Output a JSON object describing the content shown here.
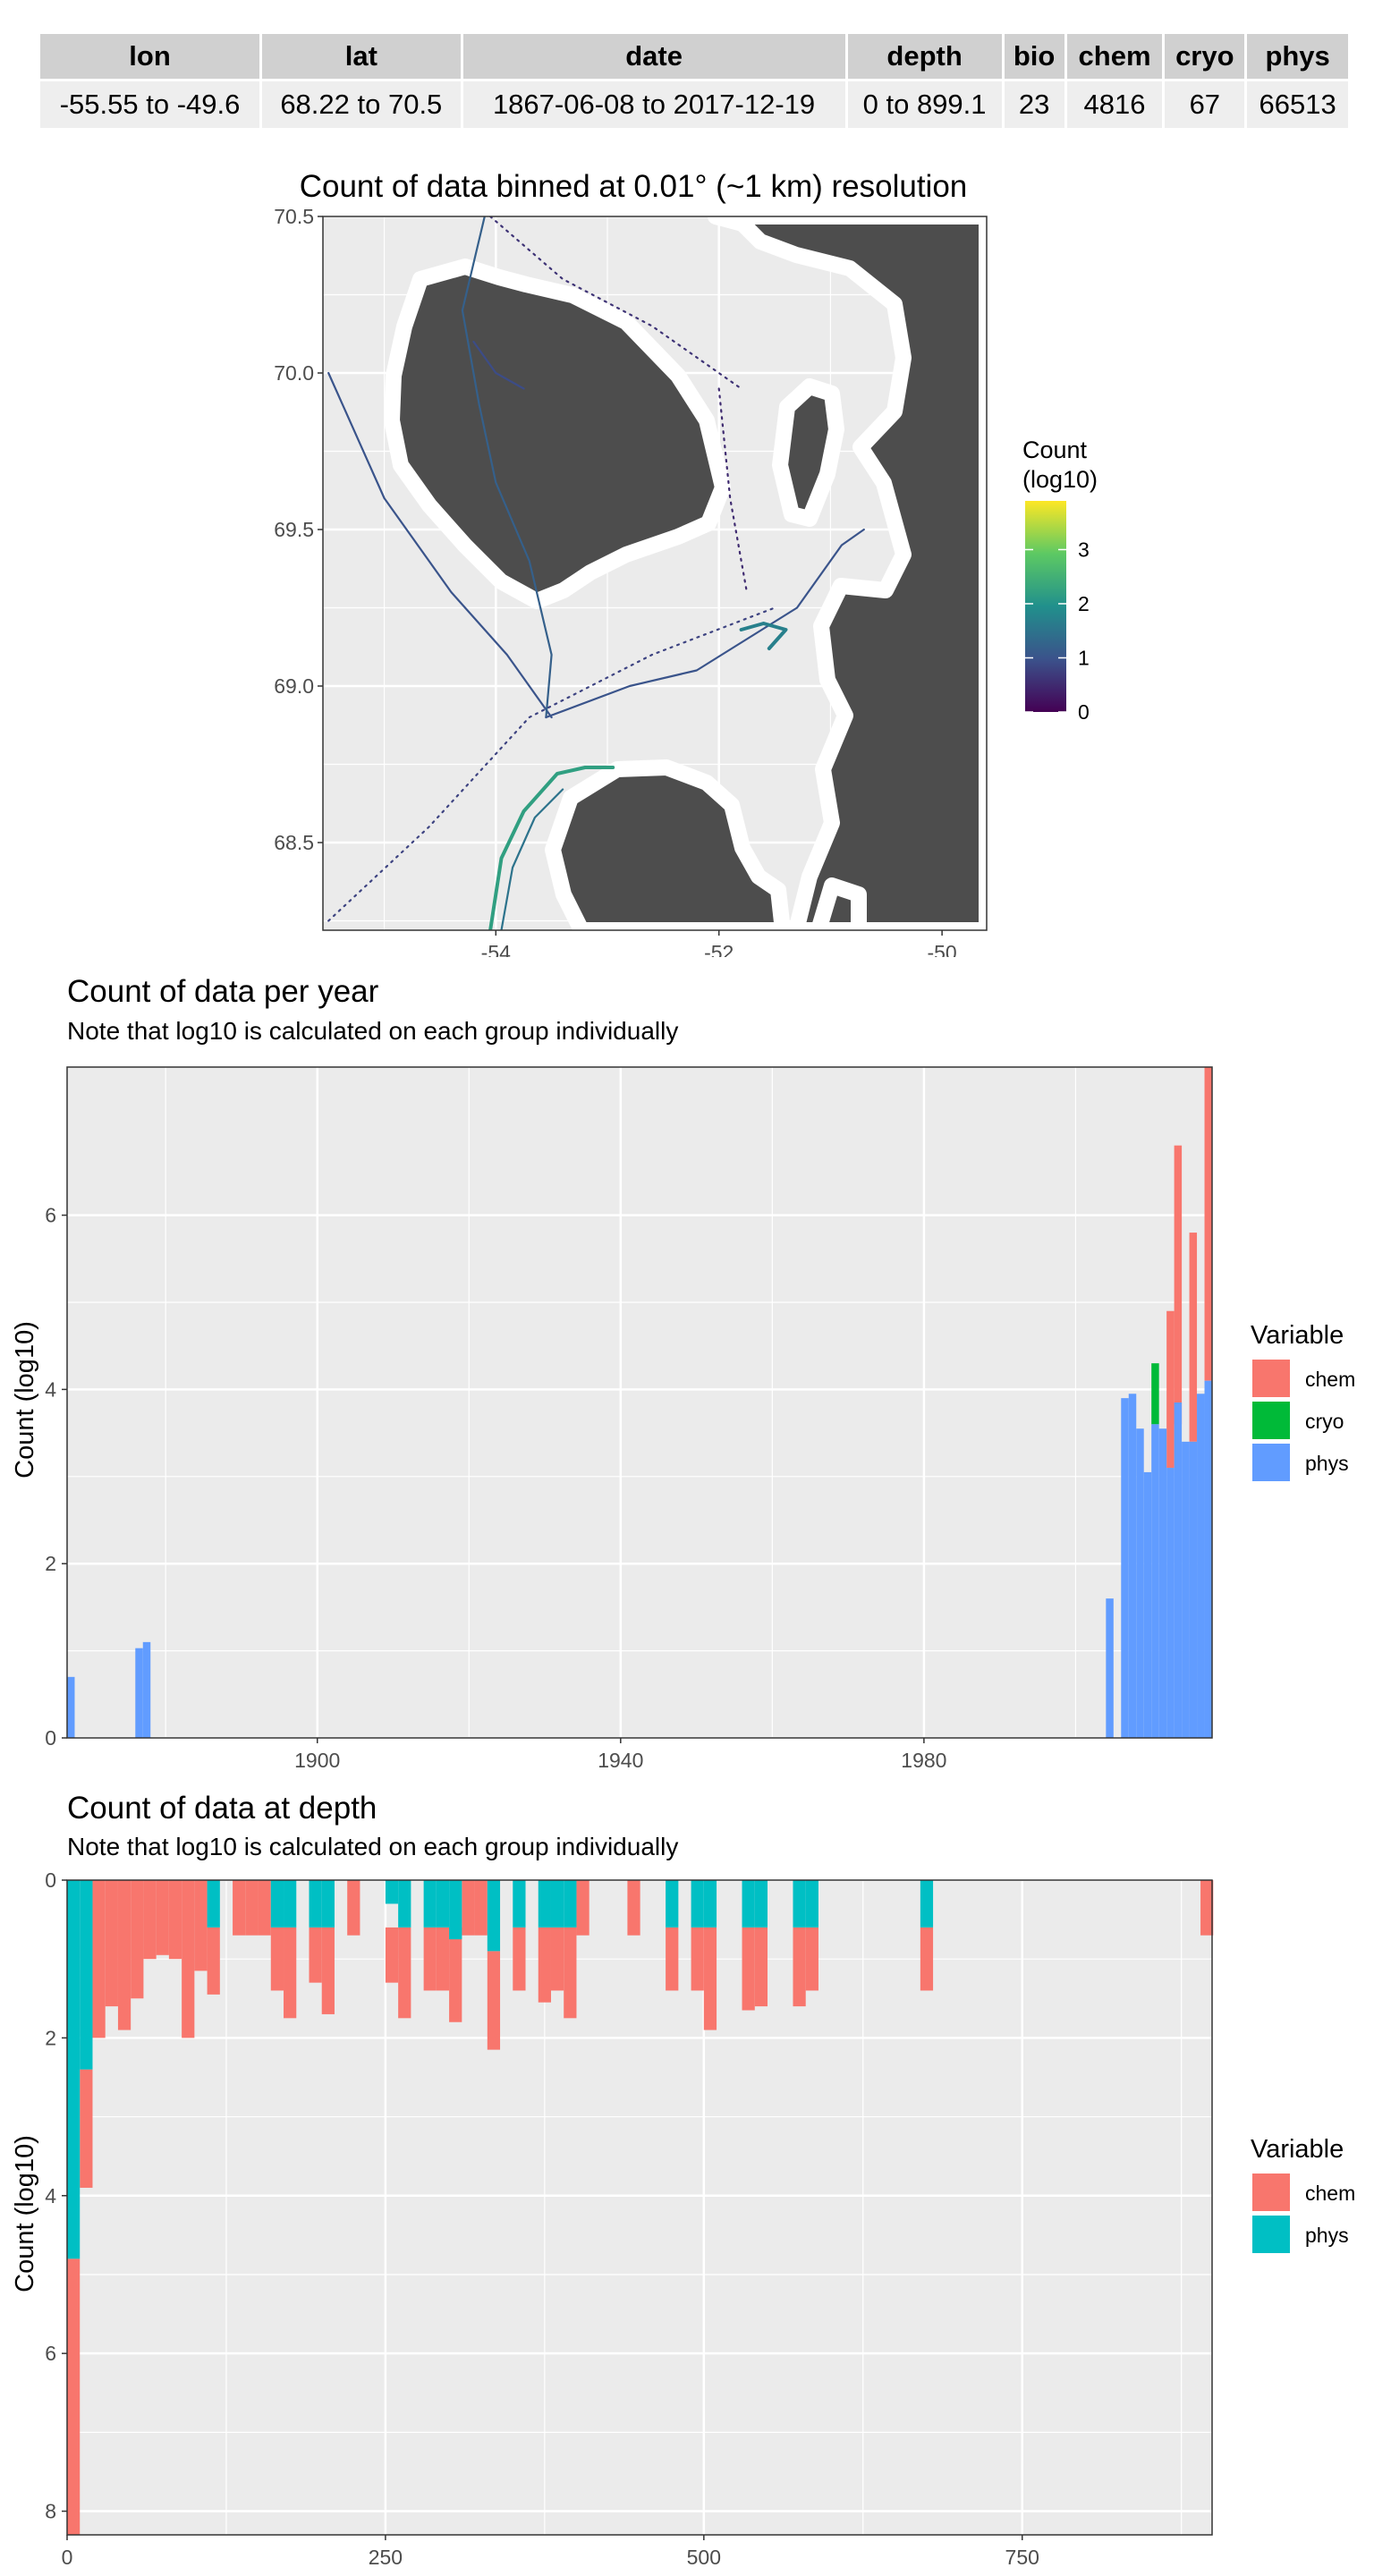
{
  "table": {
    "headers": [
      "lon",
      "lat",
      "date",
      "depth",
      "bio",
      "chem",
      "cryo",
      "phys"
    ],
    "values": [
      "-55.55 to -49.6",
      "68.22 to 70.5",
      "1867-06-08 to 2017-12-19",
      "0 to 899.1",
      "23",
      "4816",
      "67",
      "66513"
    ]
  },
  "chart_data": [
    {
      "type": "heatmap",
      "title": "Count of data binned at 0.01° (~1 km) resolution",
      "xlabel": "",
      "ylabel": "",
      "xlim": [
        -55.55,
        -49.6
      ],
      "ylim": [
        68.22,
        70.5
      ],
      "x_ticks": [
        "-54",
        "-52",
        "-50"
      ],
      "y_ticks": [
        "70.5",
        "70.0",
        "69.5",
        "69.0",
        "68.5"
      ],
      "legend_title": "Count (log10)",
      "legend_ticks": [
        "3",
        "2",
        "1",
        "0"
      ],
      "color_range": [
        0,
        3.9
      ],
      "colors": {
        "land": "#4d4d4d",
        "coast_buffer": "#ebebeb",
        "grid": "#ffffff",
        "low": "#440154",
        "mid": "#21908c",
        "high": "#fde725"
      },
      "tracks": [
        {
          "count": 1.0,
          "points": [
            [
              -55.5,
              70.0
            ],
            [
              -55.0,
              69.6
            ],
            [
              -54.4,
              69.3
            ],
            [
              -53.9,
              69.1
            ],
            [
              -53.5,
              68.9
            ]
          ]
        },
        {
          "count": 1.2,
          "points": [
            [
              -54.1,
              70.5
            ],
            [
              -54.3,
              70.2
            ],
            [
              -54.15,
              69.9
            ],
            [
              -54.0,
              69.65
            ],
            [
              -53.7,
              69.4
            ],
            [
              -53.5,
              69.1
            ],
            [
              -53.55,
              68.9
            ]
          ]
        },
        {
          "count": 1.0,
          "points": [
            [
              -53.55,
              68.9
            ],
            [
              -52.8,
              69.0
            ],
            [
              -52.2,
              69.05
            ],
            [
              -51.3,
              69.25
            ],
            [
              -50.9,
              69.45
            ],
            [
              -50.7,
              69.5
            ]
          ]
        },
        {
          "count": 2.2,
          "points": [
            [
              -54.05,
              68.22
            ],
            [
              -53.95,
              68.45
            ],
            [
              -53.75,
              68.6
            ],
            [
              -53.45,
              68.72
            ],
            [
              -53.2,
              68.74
            ],
            [
              -52.95,
              68.74
            ]
          ]
        },
        {
          "count": 1.5,
          "points": [
            [
              -53.95,
              68.22
            ],
            [
              -53.85,
              68.42
            ],
            [
              -53.65,
              68.58
            ],
            [
              -53.4,
              68.67
            ]
          ]
        },
        {
          "count": 0.8,
          "points": [
            [
              -55.5,
              68.25
            ],
            [
              -54.6,
              68.55
            ],
            [
              -53.7,
              68.9
            ],
            [
              -52.6,
              69.1
            ],
            [
              -51.5,
              69.25
            ]
          ]
        },
        {
          "count": 1.7,
          "points": [
            [
              -51.8,
              69.18
            ],
            [
              -51.6,
              69.2
            ],
            [
              -51.4,
              69.18
            ],
            [
              -51.55,
              69.12
            ]
          ]
        },
        {
          "count": 0.9,
          "points": [
            [
              -54.2,
              70.1
            ],
            [
              -54.0,
              70.0
            ],
            [
              -53.75,
              69.95
            ]
          ]
        },
        {
          "count": 0.6,
          "points": [
            [
              -54.05,
              70.5
            ],
            [
              -53.4,
              70.3
            ],
            [
              -52.6,
              70.15
            ],
            [
              -51.8,
              69.95
            ]
          ]
        },
        {
          "count": 0.5,
          "points": [
            [
              -52.0,
              69.95
            ],
            [
              -51.9,
              69.6
            ],
            [
              -51.75,
              69.3
            ]
          ]
        }
      ]
    },
    {
      "type": "bar",
      "title": "Count of data per year",
      "subtitle": "Note that log10 is calculated on each group individually",
      "xlabel": "",
      "ylabel": "Count (log10)",
      "xlim": [
        1867,
        2018
      ],
      "ylim": [
        0,
        7.7
      ],
      "x_ticks": [
        1900,
        1940,
        1980
      ],
      "y_ticks": [
        0,
        2,
        4,
        6
      ],
      "legend_title": "Variable",
      "bin_width": 1,
      "series": [
        {
          "name": "chem",
          "color": "#f8766d",
          "bars": [
            [
              2012,
              3.1,
              4.9
            ],
            [
              2013,
              3.6,
              6.8
            ],
            [
              2015,
              3.4,
              5.8
            ],
            [
              2017,
              4.1,
              7.7
            ]
          ]
        },
        {
          "name": "cryo",
          "color": "#00ba38",
          "bars": [
            [
              2010,
              3.6,
              4.3
            ]
          ]
        },
        {
          "name": "phys",
          "color": "#619cff",
          "bars": [
            [
              1867,
              0,
              0.7
            ],
            [
              1876,
              0,
              1.03
            ],
            [
              1877,
              0,
              1.1
            ],
            [
              2004,
              0,
              1.6
            ],
            [
              2006,
              0,
              3.9
            ],
            [
              2007,
              0,
              3.95
            ],
            [
              2008,
              0,
              3.55
            ],
            [
              2009,
              0,
              3.05
            ],
            [
              2010,
              0,
              3.6
            ],
            [
              2011,
              0,
              3.55
            ],
            [
              2012,
              0,
              3.1
            ],
            [
              2013,
              0,
              3.85
            ],
            [
              2014,
              0,
              3.4
            ],
            [
              2015,
              0,
              3.4
            ],
            [
              2016,
              0,
              3.95
            ],
            [
              2017,
              0,
              4.1
            ]
          ]
        }
      ]
    },
    {
      "type": "bar",
      "title": "Count of data at depth",
      "subtitle": "Note that log10 is calculated on each group individually",
      "xlabel": "",
      "ylabel": "Count (log10)",
      "xlim": [
        0,
        899.1
      ],
      "ylim": [
        0,
        8.3
      ],
      "x_ticks": [
        0,
        250,
        500,
        750
      ],
      "y_ticks": [
        0,
        2,
        4,
        6,
        8
      ],
      "legend_title": "Variable",
      "bin_width": 10,
      "series": [
        {
          "name": "chem",
          "color": "#f8766d",
          "bars": [
            [
              0,
              4.8,
              8.3
            ],
            [
              10,
              2.4,
              3.9
            ],
            [
              20,
              0,
              2.0
            ],
            [
              30,
              0,
              1.6
            ],
            [
              40,
              0,
              1.9
            ],
            [
              50,
              0,
              1.5
            ],
            [
              60,
              0,
              1.0
            ],
            [
              70,
              0,
              0.95
            ],
            [
              80,
              0,
              1.0
            ],
            [
              90,
              0,
              2.0
            ],
            [
              100,
              0,
              1.15
            ],
            [
              110,
              0.6,
              1.45
            ],
            [
              130,
              0,
              0.7
            ],
            [
              140,
              0,
              0.7
            ],
            [
              150,
              0,
              0.7
            ],
            [
              160,
              0.6,
              1.4
            ],
            [
              170,
              0.6,
              1.75
            ],
            [
              190,
              0.6,
              1.3
            ],
            [
              200,
              0.6,
              1.7
            ],
            [
              220,
              0,
              0.7
            ],
            [
              250,
              0.6,
              1.3
            ],
            [
              260,
              0.6,
              1.75
            ],
            [
              280,
              0.6,
              1.4
            ],
            [
              290,
              0.6,
              1.4
            ],
            [
              300,
              0.6,
              1.8
            ],
            [
              310,
              0,
              0.7
            ],
            [
              320,
              0,
              0.7
            ],
            [
              330,
              0.9,
              2.15
            ],
            [
              350,
              0.6,
              1.4
            ],
            [
              370,
              0.6,
              1.55
            ],
            [
              380,
              0.6,
              1.4
            ],
            [
              390,
              0.6,
              1.75
            ],
            [
              400,
              0,
              0.7
            ],
            [
              440,
              0,
              0.7
            ],
            [
              470,
              0.6,
              1.4
            ],
            [
              490,
              0.6,
              1.4
            ],
            [
              500,
              0.6,
              1.9
            ],
            [
              530,
              0.6,
              1.65
            ],
            [
              540,
              0.6,
              1.6
            ],
            [
              570,
              0.6,
              1.6
            ],
            [
              580,
              0.6,
              1.4
            ],
            [
              670,
              0.6,
              1.4
            ],
            [
              890,
              0,
              0.7
            ]
          ]
        },
        {
          "name": "phys",
          "color": "#00bfc4",
          "bars": [
            [
              0,
              0,
              4.8
            ],
            [
              10,
              0,
              2.4
            ],
            [
              110,
              0,
              0.6
            ],
            [
              160,
              0,
              0.6
            ],
            [
              170,
              0,
              0.6
            ],
            [
              190,
              0,
              0.6
            ],
            [
              200,
              0,
              0.6
            ],
            [
              250,
              0,
              0.3
            ],
            [
              260,
              0,
              0.6
            ],
            [
              280,
              0,
              0.6
            ],
            [
              290,
              0,
              0.6
            ],
            [
              300,
              0,
              0.75
            ],
            [
              330,
              0,
              0.9
            ],
            [
              350,
              0,
              0.6
            ],
            [
              370,
              0,
              0.6
            ],
            [
              380,
              0,
              0.6
            ],
            [
              390,
              0,
              0.6
            ],
            [
              470,
              0,
              0.6
            ],
            [
              490,
              0,
              0.6
            ],
            [
              500,
              0,
              0.6
            ],
            [
              530,
              0,
              0.6
            ],
            [
              540,
              0,
              0.6
            ],
            [
              570,
              0,
              0.6
            ],
            [
              580,
              0,
              0.6
            ],
            [
              670,
              0,
              0.6
            ]
          ]
        }
      ]
    }
  ]
}
